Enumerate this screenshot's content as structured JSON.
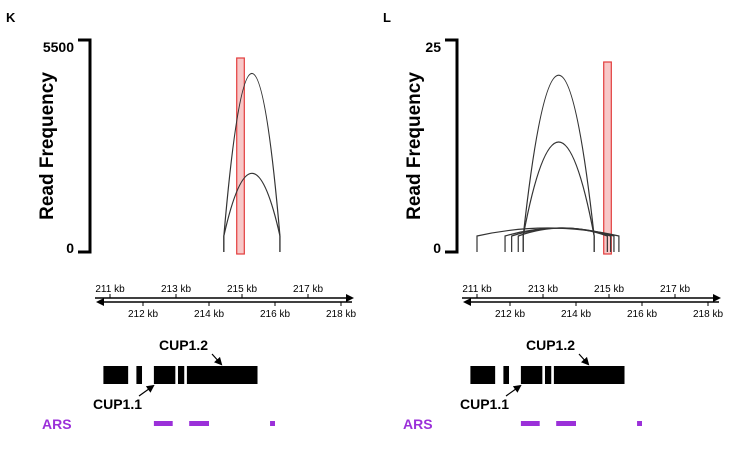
{
  "colors": {
    "arc": "#333333",
    "highlight_fill": "#f8c8c8",
    "highlight_stroke": "#e23c3c",
    "gene": "#000000",
    "ars": "#9b30d9"
  },
  "genome_axis": {
    "top_ticks": [
      {
        "label": "211 kb",
        "kb": 211
      },
      {
        "label": "213 kb",
        "kb": 213
      },
      {
        "label": "215 kb",
        "kb": 215
      },
      {
        "label": "217 kb",
        "kb": 217
      }
    ],
    "bottom_ticks": [
      {
        "label": "212 kb",
        "kb": 212
      },
      {
        "label": "214 kb",
        "kb": 214
      },
      {
        "label": "216 kb",
        "kb": 216
      },
      {
        "label": "218 kb",
        "kb": 218
      }
    ]
  },
  "panels": [
    {
      "letter": "K",
      "y_axis_title": "Read Frequency",
      "y_max_label": "5500",
      "y_min_label": "0",
      "y_max": 5500,
      "highlight": {
        "start_kb": 214.84,
        "end_kb": 215.07
      },
      "arcs": [
        {
          "start_kb": 214.45,
          "end_kb": 216.15,
          "reads": 5000
        },
        {
          "start_kb": 214.45,
          "end_kb": 216.15,
          "reads": 2140
        }
      ],
      "gene_blocks": [
        {
          "start_kb": 210.8,
          "end_kb": 211.55
        },
        {
          "start_kb": 211.8,
          "end_kb": 211.97
        },
        {
          "start_kb": 212.33,
          "end_kb": 212.98
        },
        {
          "start_kb": 213.06,
          "end_kb": 213.25
        },
        {
          "start_kb": 213.33,
          "end_kb": 215.47
        }
      ],
      "gene_labels": [
        {
          "label": "CUP1.2",
          "position": "above"
        },
        {
          "label": "CUP1.1",
          "position": "below"
        }
      ],
      "ars_label": "ARS",
      "ars_blocks": [
        {
          "start_kb": 212.33,
          "end_kb": 212.9
        },
        {
          "start_kb": 213.4,
          "end_kb": 214.0
        },
        {
          "start_kb": 215.85,
          "end_kb": 216.0
        }
      ]
    },
    {
      "letter": "L",
      "y_axis_title": "Read Frequency",
      "y_max_label": "25",
      "y_min_label": "0",
      "y_max": 25,
      "highlight": {
        "start_kb": 214.84,
        "end_kb": 215.07
      },
      "arcs": [
        {
          "start_kb": 212.4,
          "end_kb": 214.55,
          "reads": 22.5
        },
        {
          "start_kb": 212.4,
          "end_kb": 214.55,
          "reads": 13.8
        },
        {
          "start_kb": 211.0,
          "end_kb": 215.3,
          "reads": 2.6
        },
        {
          "start_kb": 211.85,
          "end_kb": 215.15,
          "reads": 2.6
        },
        {
          "start_kb": 212.05,
          "end_kb": 215.05,
          "reads": 2.6
        },
        {
          "start_kb": 212.25,
          "end_kb": 214.95,
          "reads": 2.6
        }
      ],
      "gene_blocks": [
        {
          "start_kb": 210.8,
          "end_kb": 211.55
        },
        {
          "start_kb": 211.8,
          "end_kb": 211.97
        },
        {
          "start_kb": 212.33,
          "end_kb": 212.98
        },
        {
          "start_kb": 213.06,
          "end_kb": 213.25
        },
        {
          "start_kb": 213.33,
          "end_kb": 215.47
        }
      ],
      "gene_labels": [
        {
          "label": "CUP1.2",
          "position": "above"
        },
        {
          "label": "CUP1.1",
          "position": "below"
        }
      ],
      "ars_label": "ARS",
      "ars_blocks": [
        {
          "start_kb": 212.33,
          "end_kb": 212.9
        },
        {
          "start_kb": 213.4,
          "end_kb": 214.0
        },
        {
          "start_kb": 215.85,
          "end_kb": 216.0
        }
      ]
    }
  ]
}
